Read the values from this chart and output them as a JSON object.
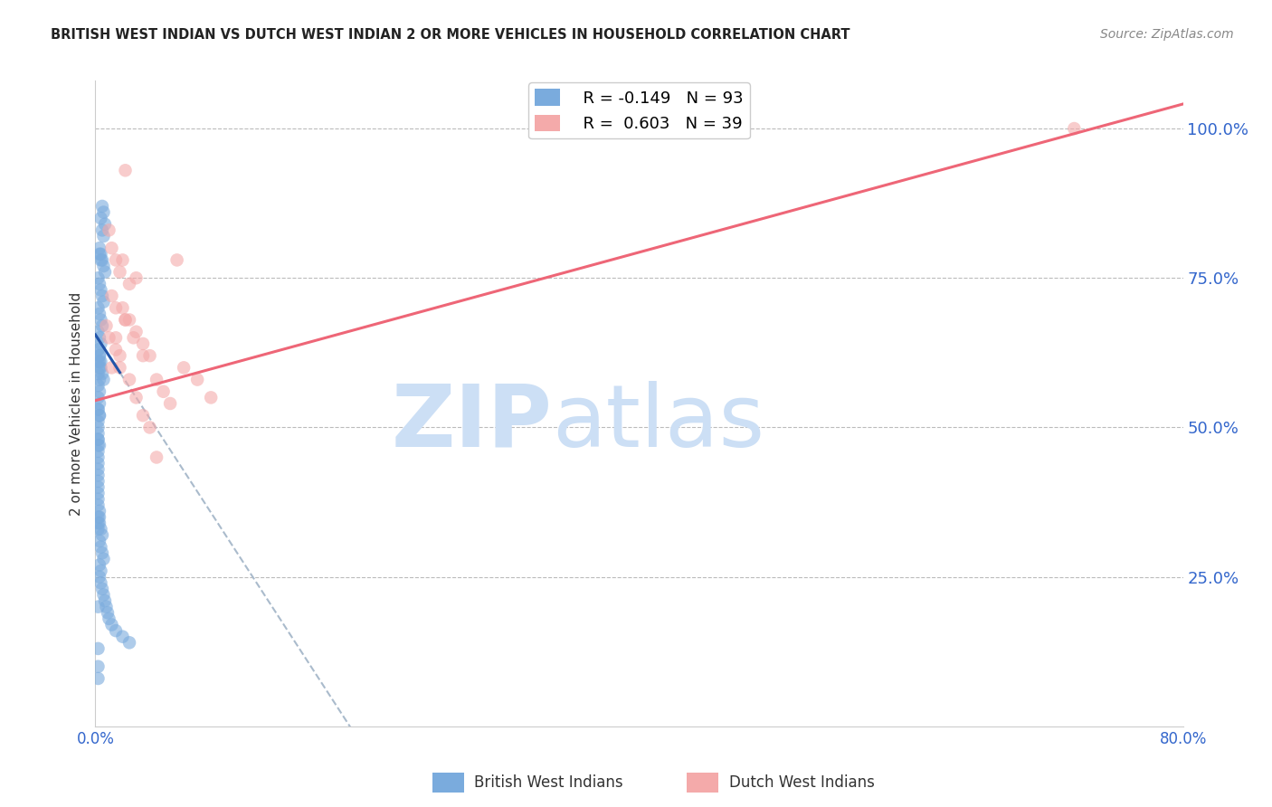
{
  "title": "BRITISH WEST INDIAN VS DUTCH WEST INDIAN 2 OR MORE VEHICLES IN HOUSEHOLD CORRELATION CHART",
  "source": "Source: ZipAtlas.com",
  "ylabel_left": "2 or more Vehicles in Household",
  "ylabel_right_labels": [
    "100.0%",
    "75.0%",
    "50.0%",
    "25.0%"
  ],
  "ylabel_right_values": [
    1.0,
    0.75,
    0.5,
    0.25
  ],
  "x_tick_labels": [
    "0.0%",
    "",
    "",
    "",
    "",
    "",
    "",
    "",
    "80.0%"
  ],
  "x_ticks": [
    0.0,
    0.1,
    0.2,
    0.3,
    0.4,
    0.5,
    0.6,
    0.7,
    0.8
  ],
  "bottom_labels": [
    "British West Indians",
    "Dutch West Indians"
  ],
  "legend_r1": "R = -0.149",
  "legend_n1": "N = 93",
  "legend_r2": "R =  0.603",
  "legend_n2": "N = 39",
  "blue_color": "#7AABDD",
  "pink_color": "#F4AAAA",
  "blue_line_color": "#2255AA",
  "pink_line_color": "#EE6677",
  "blue_scatter_x": [
    0.005,
    0.006,
    0.007,
    0.004,
    0.005,
    0.006,
    0.003,
    0.004,
    0.005,
    0.006,
    0.007,
    0.003,
    0.004,
    0.002,
    0.003,
    0.004,
    0.005,
    0.006,
    0.002,
    0.003,
    0.004,
    0.005,
    0.002,
    0.003,
    0.004,
    0.002,
    0.003,
    0.002,
    0.003,
    0.002,
    0.003,
    0.002,
    0.003,
    0.002,
    0.003,
    0.002,
    0.003,
    0.002,
    0.002,
    0.002,
    0.002,
    0.002,
    0.002,
    0.002,
    0.002,
    0.002,
    0.002,
    0.002,
    0.002,
    0.002,
    0.002,
    0.002,
    0.003,
    0.003,
    0.003,
    0.004,
    0.005,
    0.003,
    0.004,
    0.005,
    0.006,
    0.003,
    0.004,
    0.003,
    0.004,
    0.005,
    0.006,
    0.007,
    0.008,
    0.009,
    0.01,
    0.012,
    0.015,
    0.02,
    0.025,
    0.003,
    0.004,
    0.005,
    0.006,
    0.002,
    0.003,
    0.004,
    0.002,
    0.003,
    0.002,
    0.003,
    0.002,
    0.002,
    0.002,
    0.002,
    0.002,
    0.002,
    0.002
  ],
  "blue_scatter_y": [
    0.87,
    0.86,
    0.84,
    0.85,
    0.83,
    0.82,
    0.8,
    0.79,
    0.78,
    0.77,
    0.76,
    0.79,
    0.78,
    0.75,
    0.74,
    0.73,
    0.72,
    0.71,
    0.7,
    0.69,
    0.68,
    0.67,
    0.66,
    0.65,
    0.64,
    0.63,
    0.62,
    0.61,
    0.6,
    0.59,
    0.58,
    0.57,
    0.56,
    0.55,
    0.54,
    0.53,
    0.52,
    0.51,
    0.5,
    0.49,
    0.48,
    0.47,
    0.46,
    0.45,
    0.44,
    0.43,
    0.42,
    0.41,
    0.4,
    0.39,
    0.38,
    0.37,
    0.36,
    0.35,
    0.34,
    0.33,
    0.32,
    0.31,
    0.3,
    0.29,
    0.28,
    0.27,
    0.26,
    0.25,
    0.24,
    0.23,
    0.22,
    0.21,
    0.2,
    0.19,
    0.18,
    0.17,
    0.16,
    0.15,
    0.14,
    0.61,
    0.6,
    0.59,
    0.58,
    0.63,
    0.62,
    0.61,
    0.53,
    0.52,
    0.48,
    0.47,
    0.35,
    0.34,
    0.33,
    0.2,
    0.13,
    0.1,
    0.08
  ],
  "pink_scatter_x": [
    0.022,
    0.01,
    0.012,
    0.02,
    0.03,
    0.015,
    0.018,
    0.025,
    0.012,
    0.015,
    0.02,
    0.025,
    0.03,
    0.035,
    0.04,
    0.008,
    0.01,
    0.015,
    0.018,
    0.022,
    0.028,
    0.035,
    0.045,
    0.05,
    0.055,
    0.065,
    0.075,
    0.085,
    0.012,
    0.015,
    0.018,
    0.022,
    0.025,
    0.03,
    0.035,
    0.04,
    0.045,
    0.06,
    0.72
  ],
  "pink_scatter_y": [
    0.93,
    0.83,
    0.8,
    0.78,
    0.75,
    0.78,
    0.76,
    0.74,
    0.72,
    0.7,
    0.7,
    0.68,
    0.66,
    0.64,
    0.62,
    0.67,
    0.65,
    0.63,
    0.6,
    0.68,
    0.65,
    0.62,
    0.58,
    0.56,
    0.54,
    0.6,
    0.58,
    0.55,
    0.6,
    0.65,
    0.62,
    0.68,
    0.58,
    0.55,
    0.52,
    0.5,
    0.45,
    0.78,
    1.0
  ],
  "blue_trend_start_x": 0.0,
  "blue_trend_end_solid": 0.018,
  "blue_trend_end_dashed": 0.38,
  "pink_trend_start_x": 0.0,
  "pink_trend_end_x": 0.8,
  "watermark_zip": "ZIP",
  "watermark_atlas": "atlas",
  "watermark_color": "#CCDFF5",
  "background_color": "#FFFFFF",
  "grid_color": "#BBBBBB",
  "xlim": [
    0.0,
    0.8
  ],
  "ylim": [
    0.0,
    1.08
  ],
  "blue_intercept": 0.655,
  "blue_slope": -3.5,
  "pink_intercept": 0.545,
  "pink_slope": 0.62
}
